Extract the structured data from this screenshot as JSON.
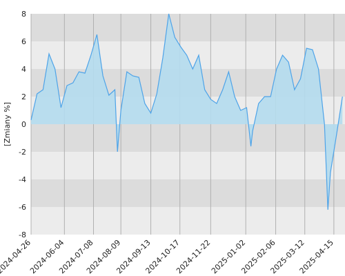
{
  "chart_data": {
    "type": "area",
    "y_label": "[Zmiany %]",
    "x": [
      "2024-04-26",
      "2024-05-03",
      "2024-05-10",
      "2024-05-17",
      "2024-05-24",
      "2024-05-31",
      "2024-06-07",
      "2024-06-14",
      "2024-06-21",
      "2024-06-28",
      "2024-07-05",
      "2024-07-12",
      "2024-07-19",
      "2024-07-26",
      "2024-08-02",
      "2024-08-05",
      "2024-08-09",
      "2024-08-16",
      "2024-08-23",
      "2024-08-30",
      "2024-09-06",
      "2024-09-13",
      "2024-09-20",
      "2024-09-27",
      "2024-10-04",
      "2024-10-11",
      "2024-10-18",
      "2024-10-25",
      "2024-11-01",
      "2024-11-08",
      "2024-11-15",
      "2024-11-22",
      "2024-11-29",
      "2024-12-06",
      "2024-12-13",
      "2024-12-20",
      "2024-12-27",
      "2025-01-03",
      "2025-01-08",
      "2025-01-10",
      "2025-01-17",
      "2025-01-24",
      "2025-01-31",
      "2025-02-07",
      "2025-02-14",
      "2025-02-21",
      "2025-02-28",
      "2025-03-07",
      "2025-03-14",
      "2025-03-21",
      "2025-03-28",
      "2025-04-04",
      "2025-04-08",
      "2025-04-11",
      "2025-04-18",
      "2025-04-25"
    ],
    "values": [
      0.3,
      2.2,
      2.5,
      5.1,
      4.0,
      1.2,
      2.8,
      3.0,
      3.8,
      3.7,
      5.0,
      6.5,
      3.5,
      2.1,
      2.5,
      -2.0,
      1.0,
      3.8,
      3.5,
      3.4,
      1.5,
      0.8,
      2.2,
      4.8,
      8.0,
      6.3,
      5.6,
      5.0,
      4.0,
      5.0,
      2.5,
      1.8,
      1.5,
      2.5,
      3.8,
      2.0,
      1.0,
      1.2,
      -1.6,
      -0.5,
      1.5,
      2.0,
      2.0,
      4.0,
      5.0,
      4.5,
      2.5,
      3.3,
      5.5,
      5.4,
      4.0,
      0.0,
      -6.2,
      -3.5,
      -0.8,
      2.0
    ],
    "color": "#4da3e8",
    "fill": "#b4dcee",
    "xlim": [
      "2024-04-26",
      "2025-04-28"
    ],
    "xticks": [
      "2024-04-26",
      "2024-06-04",
      "2024-07-08",
      "2024-08-09",
      "2024-09-13",
      "2024-10-17",
      "2024-11-22",
      "2025-01-02",
      "2025-02-06",
      "2025-03-12",
      "2025-04-15"
    ],
    "ylim": [
      -8,
      8
    ],
    "yticks": [
      -8,
      -6,
      -4,
      -2,
      0,
      2,
      4,
      6,
      8
    ],
    "band_colors": [
      "#dcdcdc",
      "#ececec"
    ],
    "grid": true
  }
}
